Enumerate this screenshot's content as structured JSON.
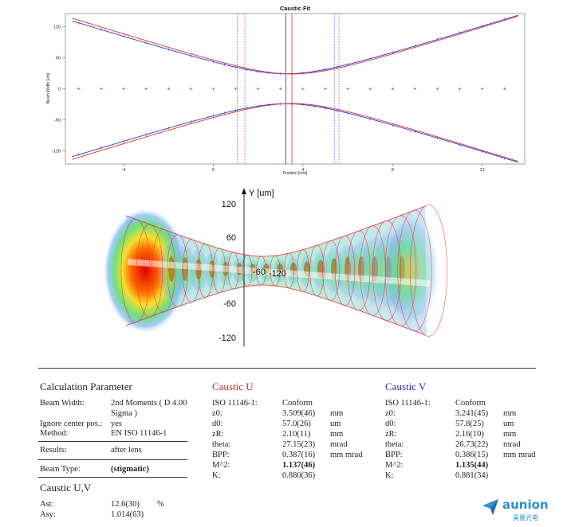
{
  "chart_data": [
    {
      "type": "line",
      "title": "Caustic Fit",
      "xlabel": "Position [mm]",
      "ylabel": "Beam Width [um]",
      "xlim": [
        -6.6,
        13.9
      ],
      "ylim": [
        -145,
        145
      ],
      "x_ticks": [
        "-4",
        "0",
        "4",
        "8",
        "12"
      ],
      "y_ticks": [
        "120",
        "60",
        "0",
        "-60",
        "-120"
      ],
      "grid": false,
      "series": [
        {
          "color": "#3030d0",
          "z0": 3.241,
          "d0": 57.8,
          "zR": 2.16
        },
        {
          "color": "#d83030",
          "z0": 3.509,
          "d0": 57.0,
          "zR": 2.1
        }
      ],
      "measured_x": [
        -6.0,
        -5.0,
        -4.0,
        -3.0,
        -2.0,
        -1.0,
        0.0,
        0.5,
        1.0,
        1.5,
        2.0,
        2.5,
        3.0,
        3.5,
        4.0,
        4.5,
        5.0,
        5.5,
        6.0,
        7.0,
        8.0,
        9.0,
        10.0,
        11.0,
        12.0,
        13.0
      ],
      "markers_x": [
        -6.0,
        -5.0,
        -4.0,
        -3.0,
        -2.0,
        -1.0,
        0.0,
        1.0,
        2.0,
        3.0,
        4.0,
        5.0,
        6.0,
        7.0,
        8.0,
        9.0,
        10.0,
        11.0,
        12.0,
        13.0
      ],
      "vlines_blue": [
        1.08,
        5.4
      ],
      "vlines_red": [
        1.41,
        5.61
      ],
      "center_blue": 3.241,
      "center_red": 3.509
    },
    {
      "type": "other",
      "y_axis_label": "Y [um]",
      "axis_labels": [
        "120",
        "60",
        "-60",
        "-120",
        "-60",
        "-120"
      ]
    }
  ],
  "report": {
    "calc_param_title": "Calculation Parameter",
    "beam_width_label": "Beam Width:",
    "beam_width_value": "2nd Moments ( D 4.00",
    "beam_width_value2": "Sigma  )",
    "ignore_label": "Ignore center pos.:",
    "ignore_value": "yes",
    "method_label": "Method:",
    "method_value": "EN ISO 11146-1",
    "results_label": "Results:",
    "results_value": "after lens",
    "beam_type_label": "Beam Type:",
    "beam_type_value": "(stigmatic)",
    "caustic_uv_title": "Caustic U,V",
    "ast_label": "Ast:",
    "ast_value": "12.6(30)",
    "ast_unit": "%",
    "asy_label": "Asy:",
    "asy_value": "1.014(63)",
    "caustic_u_title": "Caustic U",
    "caustic_v_title": "Caustic V",
    "row_labels": [
      "ISO 11146-1:",
      "z0:",
      "d0:",
      "zR:",
      "theta:",
      "BPP:",
      "M^2:",
      "K:"
    ],
    "u_values": [
      "Conform",
      "3.509(46)",
      "57.0(26)",
      "2.10(11)",
      "27.15(23)",
      "0.387(16)",
      "1.137(46)",
      "0.880(36)"
    ],
    "v_values": [
      "Conform",
      "3.241(45)",
      "57.8(25)",
      "2.16(10)",
      "26.73(22)",
      "0.386(15)",
      "1.135(44)",
      "0.881(34)"
    ],
    "units": [
      "",
      "mm",
      "um",
      "mm",
      "mrad",
      "mm mrad",
      "",
      ""
    ]
  },
  "logo": {
    "text": "aunion",
    "subtext": "昊量光电"
  },
  "colors": {
    "u": "#d42626",
    "v": "#2a2ad0",
    "logo": "#2f8fd0"
  }
}
